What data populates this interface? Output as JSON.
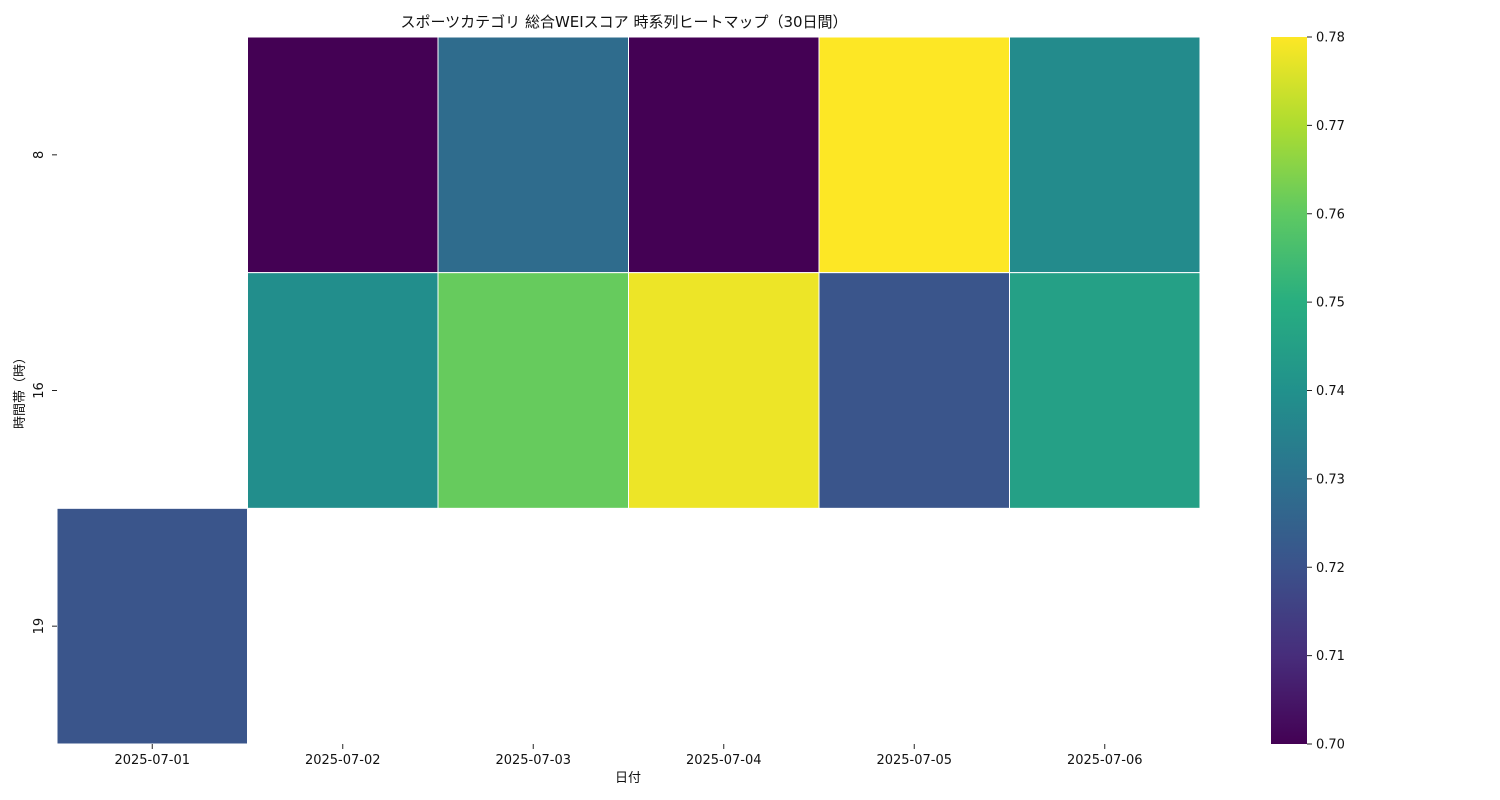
{
  "chart_data": {
    "type": "heatmap",
    "title": "スポーツカテゴリ 総合WEIスコア 時系列ヒートマップ（30日間）",
    "xlabel": "日付",
    "ylabel": "時間帯（時）",
    "x_categories": [
      "2025-07-01",
      "2025-07-02",
      "2025-07-03",
      "2025-07-04",
      "2025-07-05",
      "2025-07-06"
    ],
    "y_categories": [
      "8",
      "16",
      "19"
    ],
    "values": [
      [
        null,
        0.7,
        0.728,
        0.7,
        0.78,
        0.738
      ],
      [
        null,
        0.739,
        0.761,
        0.778,
        0.721,
        0.745
      ],
      [
        0.721,
        null,
        null,
        null,
        null,
        null
      ]
    ],
    "colorbar": {
      "min": 0.7,
      "max": 0.78,
      "ticks": [
        "0.70",
        "0.71",
        "0.72",
        "0.73",
        "0.74",
        "0.75",
        "0.76",
        "0.77",
        "0.78"
      ]
    },
    "colormap": "viridis",
    "colormap_stops": [
      "#440154",
      "#472d7b",
      "#3b528b",
      "#2c728e",
      "#21918c",
      "#28ae80",
      "#5ec962",
      "#addc30",
      "#fde725"
    ]
  }
}
